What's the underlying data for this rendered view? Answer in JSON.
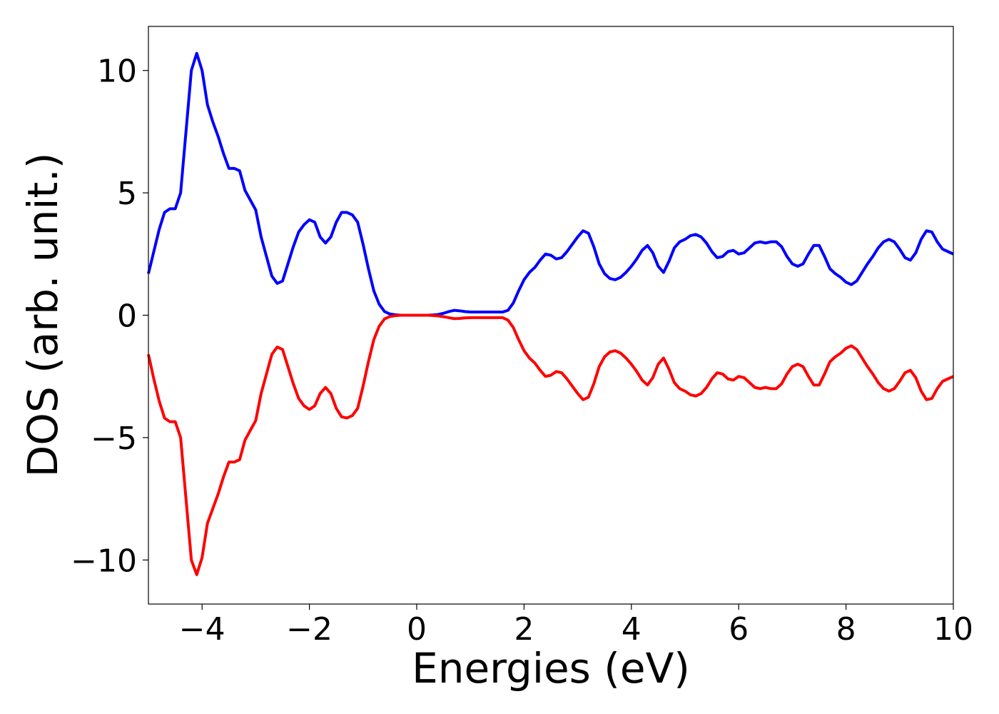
{
  "chart_data": {
    "type": "line",
    "xlabel": "Energies (eV)",
    "ylabel": "DOS (arb. unit.)",
    "x": [
      -5.0,
      -4.9,
      -4.8,
      -4.7,
      -4.6,
      -4.5,
      -4.4,
      -4.3,
      -4.2,
      -4.1,
      -4.0,
      -3.9,
      -3.8,
      -3.7,
      -3.6,
      -3.5,
      -3.4,
      -3.3,
      -3.2,
      -3.1,
      -3.0,
      -2.9,
      -2.8,
      -2.7,
      -2.6,
      -2.5,
      -2.4,
      -2.3,
      -2.2,
      -2.1,
      -2.0,
      -1.9,
      -1.8,
      -1.7,
      -1.6,
      -1.5,
      -1.4,
      -1.3,
      -1.2,
      -1.1,
      -1.0,
      -0.9,
      -0.8,
      -0.7,
      -0.6,
      -0.5,
      -0.4,
      -0.3,
      -0.2,
      -0.1,
      0.0,
      0.1,
      0.2,
      0.3,
      0.4,
      0.5,
      0.6,
      0.7,
      0.8,
      0.9,
      1.0,
      1.1,
      1.2,
      1.3,
      1.4,
      1.5,
      1.6,
      1.7,
      1.8,
      1.9,
      2.0,
      2.1,
      2.2,
      2.3,
      2.4,
      2.5,
      2.6,
      2.7,
      2.8,
      2.9,
      3.0,
      3.1,
      3.2,
      3.3,
      3.4,
      3.5,
      3.6,
      3.7,
      3.8,
      3.9,
      4.0,
      4.1,
      4.2,
      4.3,
      4.4,
      4.5,
      4.6,
      4.7,
      4.8,
      4.9,
      5.0,
      5.1,
      5.2,
      5.3,
      5.4,
      5.5,
      5.6,
      5.7,
      5.8,
      5.9,
      6.0,
      6.1,
      6.2,
      6.3,
      6.4,
      6.5,
      6.6,
      6.7,
      6.8,
      6.9,
      7.0,
      7.1,
      7.2,
      7.3,
      7.4,
      7.5,
      7.6,
      7.7,
      7.8,
      7.9,
      8.0,
      8.1,
      8.2,
      8.3,
      8.4,
      8.5,
      8.6,
      8.7,
      8.8,
      8.9,
      9.0,
      9.1,
      9.2,
      9.3,
      9.4,
      9.5,
      9.6,
      9.7,
      9.8,
      9.9,
      10.0
    ],
    "series": [
      {
        "color": "#0000ff",
        "values": [
          1.7,
          2.6,
          3.5,
          4.2,
          4.35,
          4.35,
          5.0,
          7.5,
          10.0,
          10.7,
          10.0,
          8.6,
          7.9,
          7.3,
          6.6,
          6.0,
          6.0,
          5.9,
          5.1,
          4.7,
          4.3,
          3.2,
          2.4,
          1.6,
          1.3,
          1.4,
          2.1,
          2.8,
          3.4,
          3.7,
          3.9,
          3.8,
          3.2,
          2.95,
          3.2,
          3.8,
          4.2,
          4.2,
          4.1,
          3.8,
          2.9,
          1.9,
          1.0,
          0.45,
          0.15,
          0.05,
          0.02,
          0,
          0,
          0,
          0,
          0,
          0,
          0.01,
          0.03,
          0.08,
          0.15,
          0.2,
          0.18,
          0.15,
          0.13,
          0.13,
          0.13,
          0.13,
          0.13,
          0.13,
          0.13,
          0.2,
          0.5,
          1.0,
          1.45,
          1.75,
          1.95,
          2.25,
          2.5,
          2.45,
          2.3,
          2.35,
          2.6,
          2.9,
          3.2,
          3.45,
          3.35,
          2.8,
          2.1,
          1.7,
          1.5,
          1.45,
          1.55,
          1.75,
          2.0,
          2.3,
          2.65,
          2.85,
          2.55,
          2.0,
          1.75,
          2.2,
          2.75,
          3.0,
          3.1,
          3.25,
          3.3,
          3.2,
          2.95,
          2.6,
          2.35,
          2.4,
          2.6,
          2.65,
          2.5,
          2.55,
          2.75,
          2.95,
          3.0,
          2.95,
          3.0,
          3.0,
          2.8,
          2.4,
          2.1,
          2.0,
          2.1,
          2.5,
          2.85,
          2.85,
          2.4,
          1.9,
          1.7,
          1.55,
          1.35,
          1.25,
          1.4,
          1.75,
          2.1,
          2.4,
          2.75,
          3.0,
          3.1,
          3.0,
          2.7,
          2.35,
          2.25,
          2.55,
          3.1,
          3.45,
          3.4,
          3.0,
          2.7,
          2.6,
          2.5
        ]
      },
      {
        "color": "#ff0000",
        "values": [
          -1.6,
          -2.6,
          -3.5,
          -4.2,
          -4.35,
          -4.35,
          -5.0,
          -7.5,
          -10.0,
          -10.6,
          -9.9,
          -8.5,
          -7.9,
          -7.3,
          -6.6,
          -6.0,
          -6.0,
          -5.9,
          -5.1,
          -4.7,
          -4.3,
          -3.2,
          -2.4,
          -1.6,
          -1.3,
          -1.4,
          -2.1,
          -2.8,
          -3.4,
          -3.7,
          -3.85,
          -3.7,
          -3.2,
          -2.95,
          -3.2,
          -3.8,
          -4.15,
          -4.2,
          -4.1,
          -3.8,
          -2.9,
          -1.9,
          -1.0,
          -0.45,
          -0.15,
          -0.05,
          -0.02,
          0,
          0,
          0,
          0,
          0,
          0,
          -0.01,
          -0.03,
          -0.06,
          -0.1,
          -0.14,
          -0.13,
          -0.11,
          -0.1,
          -0.1,
          -0.1,
          -0.1,
          -0.1,
          -0.1,
          -0.1,
          -0.2,
          -0.5,
          -1.0,
          -1.45,
          -1.75,
          -1.95,
          -2.25,
          -2.5,
          -2.45,
          -2.3,
          -2.35,
          -2.6,
          -2.9,
          -3.2,
          -3.45,
          -3.35,
          -2.8,
          -2.1,
          -1.7,
          -1.5,
          -1.45,
          -1.55,
          -1.75,
          -2.0,
          -2.3,
          -2.65,
          -2.85,
          -2.55,
          -2.0,
          -1.75,
          -2.2,
          -2.75,
          -3.0,
          -3.1,
          -3.25,
          -3.3,
          -3.2,
          -2.95,
          -2.6,
          -2.35,
          -2.4,
          -2.6,
          -2.65,
          -2.5,
          -2.55,
          -2.75,
          -2.95,
          -3.0,
          -2.95,
          -3.0,
          -3.0,
          -2.8,
          -2.4,
          -2.1,
          -2.0,
          -2.1,
          -2.5,
          -2.85,
          -2.85,
          -2.4,
          -1.9,
          -1.7,
          -1.55,
          -1.35,
          -1.25,
          -1.4,
          -1.75,
          -2.1,
          -2.4,
          -2.75,
          -3.0,
          -3.1,
          -3.0,
          -2.7,
          -2.35,
          -2.25,
          -2.55,
          -3.1,
          -3.45,
          -3.4,
          -3.0,
          -2.7,
          -2.6,
          -2.5
        ]
      }
    ],
    "xlim": [
      -5,
      10
    ],
    "xticks": [
      {
        "value": -4,
        "label": "−4"
      },
      {
        "value": -2,
        "label": "−2"
      },
      0,
      2,
      4,
      6,
      8,
      10
    ],
    "ylim": [
      -11.8,
      11.8
    ],
    "yticks": [
      {
        "value": -10,
        "label": "−10"
      },
      {
        "value": -5,
        "label": "−5"
      },
      0,
      5,
      10
    ],
    "grid": false
  }
}
